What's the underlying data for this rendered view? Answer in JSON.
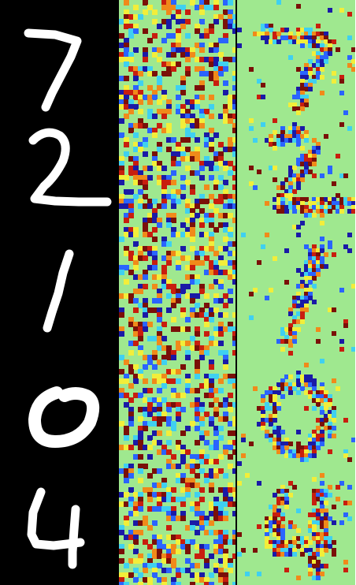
{
  "figure": {
    "panels": [
      {
        "id": "input-digits",
        "kind": "grayscale-digits",
        "digits": [
          7,
          2,
          1,
          0,
          4
        ]
      },
      {
        "id": "heatmap-noisy",
        "kind": "jet-heatmap"
      },
      {
        "id": "heatmap-digits",
        "kind": "jet-heatmap",
        "digits": [
          7,
          2,
          1,
          0,
          4
        ]
      }
    ],
    "colors": {
      "background_black": "#000000",
      "digit_white": "#ffffff",
      "jet_base": "#9fe88f",
      "jet_dark_blue": "#1a1aa6",
      "jet_blue": "#2a64ff",
      "jet_cyan": "#3fd0f0",
      "jet_yellow": "#f2ee3a",
      "jet_orange": "#f08a1a",
      "jet_red": "#c81e0e",
      "jet_dark_red": "#7a1008"
    }
  }
}
